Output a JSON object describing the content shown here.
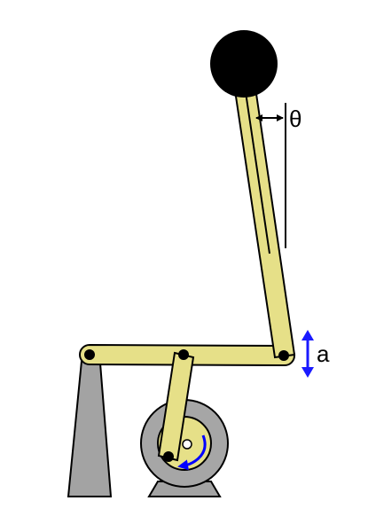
{
  "labels": {
    "theta": "θ",
    "a": "a"
  },
  "colors": {
    "link_fill": "#e6e088",
    "link_stroke": "#000000",
    "base_fill": "#a3a3a3",
    "motor_fill": "#a6a6a6",
    "mass_fill": "#000000",
    "rotation_arrow": "#0000ff",
    "amplitude_arrow": "#1a1aff",
    "background": "#ffffff"
  },
  "parts": {
    "pendulum_mass": "black-ball",
    "rotation_indicator": "curved-arrow-icon",
    "amplitude_indicator": "double-arrow-icon"
  }
}
